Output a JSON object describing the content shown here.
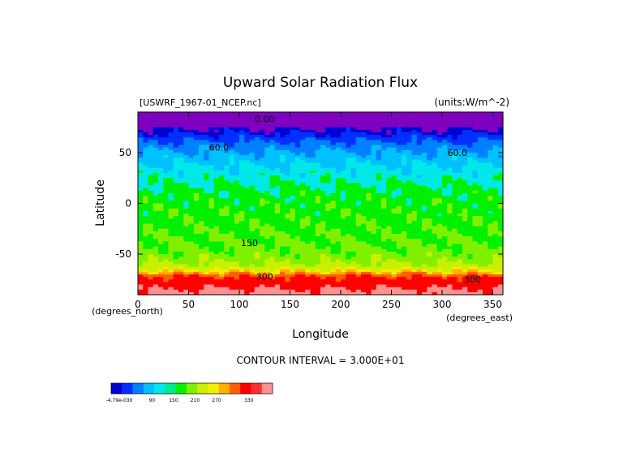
{
  "chart_data": {
    "type": "heatmap",
    "title": "Upward Solar Radiation Flux",
    "subtitle_left": "[USWRF_1967-01_NCEP.nc]",
    "subtitle_right": "(units:W/m^-2)",
    "xlabel": "Longitude",
    "ylabel": "Latitude",
    "x_unit_label": "(degrees_east)",
    "y_unit_label": "(degrees_north)",
    "xlim": [
      0,
      360
    ],
    "ylim": [
      -90,
      90
    ],
    "x_ticks": [
      0,
      50,
      100,
      150,
      200,
      250,
      300,
      350
    ],
    "y_ticks": [
      50,
      0,
      -50
    ],
    "contour_interval_text": "CONTOUR INTERVAL = 3.000E+01",
    "contour_labels": [
      {
        "text": "0.00",
        "x": 125,
        "y": 80
      },
      {
        "text": "60.0",
        "x": 80,
        "y": 52
      },
      {
        "text": "60.0",
        "x": 315,
        "y": 47
      },
      {
        "text": "150",
        "x": 110,
        "y": -42
      },
      {
        "text": "300",
        "x": 125,
        "y": -75
      },
      {
        "text": "300",
        "x": 330,
        "y": -78
      }
    ],
    "zonal_profile": [
      {
        "lat": 90,
        "value": 0
      },
      {
        "lat": 80,
        "value": 0
      },
      {
        "lat": 72,
        "value": 15
      },
      {
        "lat": 65,
        "value": 45
      },
      {
        "lat": 55,
        "value": 80
      },
      {
        "lat": 45,
        "value": 105
      },
      {
        "lat": 35,
        "value": 125
      },
      {
        "lat": 25,
        "value": 140
      },
      {
        "lat": 15,
        "value": 155
      },
      {
        "lat": 5,
        "value": 165
      },
      {
        "lat": -5,
        "value": 168
      },
      {
        "lat": -15,
        "value": 172
      },
      {
        "lat": -25,
        "value": 175
      },
      {
        "lat": -35,
        "value": 180
      },
      {
        "lat": -45,
        "value": 185
      },
      {
        "lat": -55,
        "value": 200
      },
      {
        "lat": -62,
        "value": 220
      },
      {
        "lat": -68,
        "value": 260
      },
      {
        "lat": -72,
        "value": 285
      },
      {
        "lat": -78,
        "value": 300
      },
      {
        "lat": -84,
        "value": 315
      },
      {
        "lat": -90,
        "value": 325
      }
    ],
    "colorbar": {
      "labels": [
        "-4.79e-030",
        "90",
        "150",
        "210",
        "270",
        "330"
      ],
      "colors": [
        "#0000d0",
        "#0030ff",
        "#0080ff",
        "#00c0ff",
        "#00e8e8",
        "#00e890",
        "#00f000",
        "#80f000",
        "#c8f000",
        "#f0f000",
        "#ffb000",
        "#ff6000",
        "#ff0000",
        "#ff3030",
        "#ff9090"
      ]
    },
    "level_colors": [
      {
        "min": -1000,
        "color": "#8000c0"
      },
      {
        "min": 10,
        "color": "#0000d0"
      },
      {
        "min": 30,
        "color": "#0030ff"
      },
      {
        "min": 60,
        "color": "#0080ff"
      },
      {
        "min": 90,
        "color": "#00c0ff"
      },
      {
        "min": 120,
        "color": "#00e8e8"
      },
      {
        "min": 150,
        "color": "#00f000"
      },
      {
        "min": 180,
        "color": "#80f000"
      },
      {
        "min": 210,
        "color": "#c8f000"
      },
      {
        "min": 240,
        "color": "#f0f000"
      },
      {
        "min": 255,
        "color": "#ffb000"
      },
      {
        "min": 270,
        "color": "#ff6000"
      },
      {
        "min": 285,
        "color": "#ff0000"
      },
      {
        "min": 315,
        "color": "#ff9090"
      }
    ]
  }
}
